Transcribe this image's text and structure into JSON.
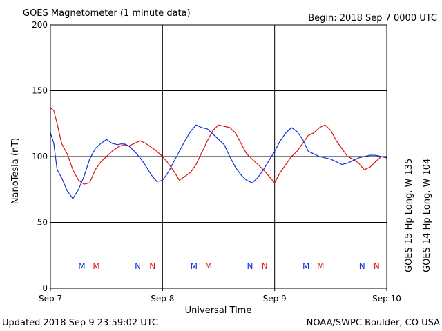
{
  "header": {
    "title": "GOES Magnetometer (1 minute data)",
    "begin": "Begin:  2018 Sep 7 0000 UTC"
  },
  "footer": {
    "updated": "Updated 2018 Sep  9 23:59:02 UTC",
    "credit": "NOAA/SWPC Boulder, CO USA"
  },
  "colors": {
    "goes15": "#e01010",
    "goes14": "#1030d8",
    "grid": "#000000"
  },
  "chart_data": {
    "type": "line",
    "ylabel": "NanoTesla (nT)",
    "xlabel": "Universal Time",
    "ylim": [
      0,
      200
    ],
    "xlim": [
      0,
      3
    ],
    "yticks": [
      "0",
      "50",
      "100",
      "150",
      "200"
    ],
    "xticks": [
      "Sep 7",
      "Sep 8",
      "Sep 9",
      "Sep 10"
    ],
    "grid": true,
    "legend_placement": "right, vertical",
    "series": [
      {
        "name": "GOES 15 Hp  Long. W 135",
        "color": "#e01010",
        "x": [
          0.0,
          0.03,
          0.06,
          0.1,
          0.15,
          0.2,
          0.25,
          0.3,
          0.35,
          0.4,
          0.45,
          0.5,
          0.55,
          0.6,
          0.65,
          0.7,
          0.75,
          0.8,
          0.85,
          0.9,
          0.95,
          1.0,
          1.05,
          1.1,
          1.15,
          1.2,
          1.25,
          1.3,
          1.35,
          1.4,
          1.45,
          1.5,
          1.55,
          1.6,
          1.65,
          1.7,
          1.75,
          1.8,
          1.85,
          1.9,
          1.95,
          2.0,
          2.05,
          2.1,
          2.15,
          2.2,
          2.25,
          2.3,
          2.35,
          2.4,
          2.45,
          2.5,
          2.55,
          2.6,
          2.65,
          2.7,
          2.75,
          2.8,
          2.85,
          2.9,
          2.95,
          3.0
        ],
        "y": [
          137,
          135,
          125,
          110,
          102,
          90,
          82,
          79,
          80,
          90,
          96,
          100,
          104,
          107,
          109,
          108,
          110,
          112,
          110,
          107,
          104,
          100,
          95,
          89,
          82,
          85,
          88,
          94,
          103,
          112,
          120,
          124,
          123,
          122,
          118,
          110,
          102,
          98,
          94,
          90,
          85,
          80,
          88,
          94,
          100,
          104,
          110,
          116,
          118,
          122,
          124,
          120,
          112,
          106,
          100,
          98,
          95,
          90,
          92,
          96,
          100,
          99
        ]
      },
      {
        "name": "GOES 14 Hp  Long. W 104",
        "color": "#1030d8",
        "x": [
          0.0,
          0.03,
          0.06,
          0.1,
          0.15,
          0.2,
          0.25,
          0.3,
          0.35,
          0.4,
          0.45,
          0.5,
          0.55,
          0.6,
          0.65,
          0.7,
          0.75,
          0.8,
          0.85,
          0.9,
          0.95,
          1.0,
          1.05,
          1.1,
          1.15,
          1.2,
          1.25,
          1.3,
          1.35,
          1.4,
          1.45,
          1.5,
          1.55,
          1.6,
          1.65,
          1.7,
          1.75,
          1.8,
          1.85,
          1.9,
          1.95,
          2.0,
          2.05,
          2.1,
          2.15,
          2.2,
          2.25,
          2.3,
          2.35,
          2.4,
          2.45,
          2.5,
          2.55,
          2.6,
          2.65,
          2.7,
          2.75,
          2.8,
          2.85,
          2.9,
          2.95,
          3.0
        ],
        "y": [
          118,
          110,
          90,
          84,
          74,
          68,
          75,
          85,
          98,
          106,
          110,
          113,
          110,
          109,
          110,
          108,
          104,
          99,
          93,
          86,
          81,
          82,
          88,
          96,
          104,
          112,
          119,
          124,
          122,
          121,
          117,
          113,
          109,
          100,
          92,
          86,
          82,
          80,
          84,
          90,
          97,
          104,
          112,
          118,
          122,
          119,
          113,
          104,
          102,
          100,
          99,
          98,
          96,
          94,
          95,
          97,
          99,
          100,
          101,
          101,
          100,
          99
        ]
      }
    ],
    "markers": [
      {
        "label": "M",
        "x": 0.28,
        "color": "#1030d8"
      },
      {
        "label": "M",
        "x": 0.41,
        "color": "#e01010"
      },
      {
        "label": "N",
        "x": 0.78,
        "color": "#1030d8"
      },
      {
        "label": "N",
        "x": 0.91,
        "color": "#e01010"
      },
      {
        "label": "M",
        "x": 1.28,
        "color": "#1030d8"
      },
      {
        "label": "M",
        "x": 1.41,
        "color": "#e01010"
      },
      {
        "label": "N",
        "x": 1.78,
        "color": "#1030d8"
      },
      {
        "label": "N",
        "x": 1.91,
        "color": "#e01010"
      },
      {
        "label": "M",
        "x": 2.28,
        "color": "#1030d8"
      },
      {
        "label": "M",
        "x": 2.41,
        "color": "#e01010"
      },
      {
        "label": "N",
        "x": 2.78,
        "color": "#1030d8"
      },
      {
        "label": "N",
        "x": 2.91,
        "color": "#e01010"
      }
    ]
  }
}
